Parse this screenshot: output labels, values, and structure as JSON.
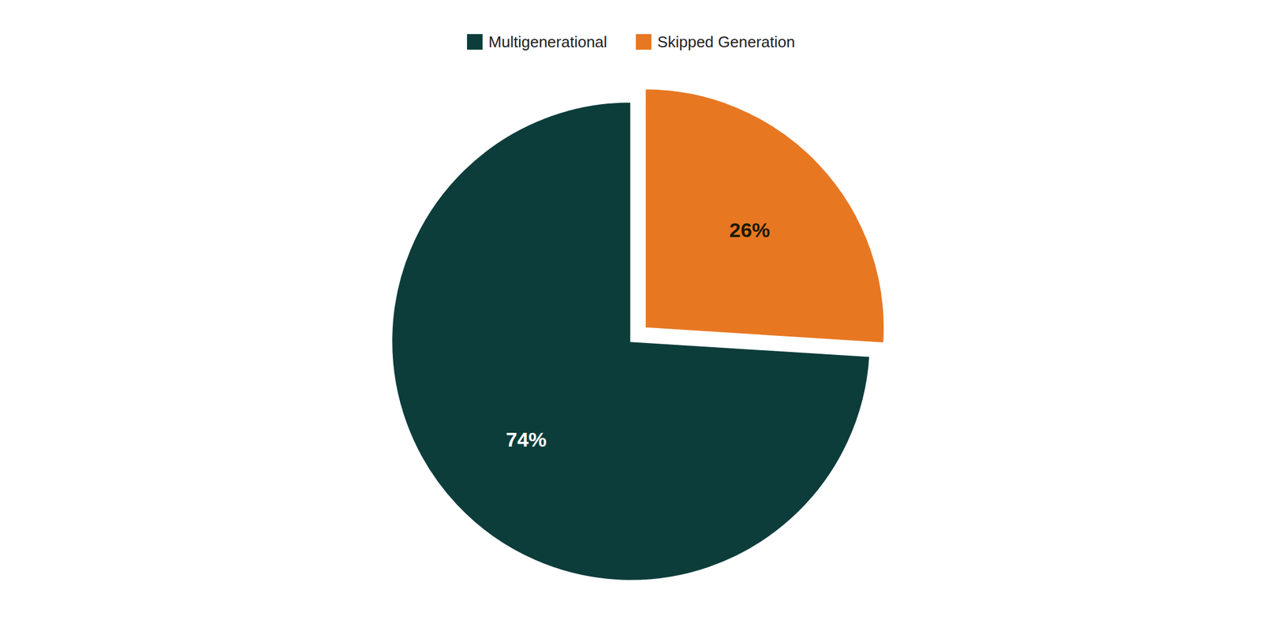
{
  "chart_data": {
    "type": "pie",
    "categories": [
      "Multigenerational",
      "Skipped Generation"
    ],
    "values": [
      74,
      26
    ],
    "value_labels": [
      "74%",
      "26%"
    ],
    "colors": [
      "#0d3d3b",
      "#e87722"
    ],
    "data_labels": true,
    "legend": "top"
  }
}
